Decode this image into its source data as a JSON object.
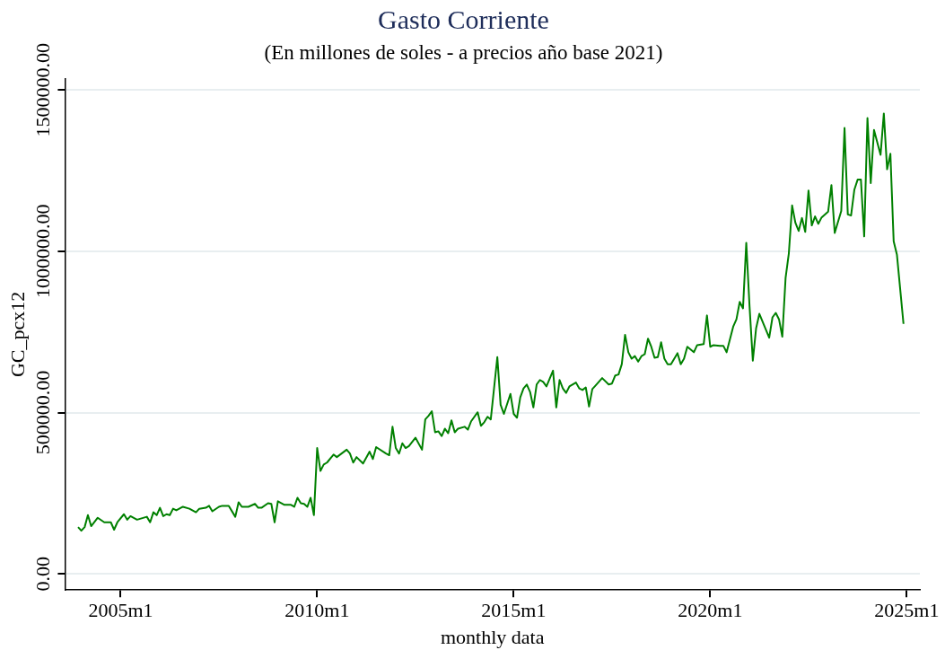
{
  "chart_data": {
    "type": "line",
    "title": "Gasto Corriente",
    "subtitle": "(En millones de soles - a precios año base 2021)",
    "xlabel": "monthly data",
    "ylabel": "GC_pcx12",
    "xlim": [
      "2003-08",
      "2025-05"
    ],
    "ylim": [
      -50000,
      1535000
    ],
    "xticks": [
      {
        "value": "2005-01",
        "label": "2005m1"
      },
      {
        "value": "2010-01",
        "label": "2010m1"
      },
      {
        "value": "2015-01",
        "label": "2015m1"
      },
      {
        "value": "2020-01",
        "label": "2020m1"
      },
      {
        "value": "2025-01",
        "label": "2025m1"
      }
    ],
    "yticks": [
      {
        "value": 0,
        "label": "0.00"
      },
      {
        "value": 500000,
        "label": "500000.00"
      },
      {
        "value": 1000000,
        "label": "1000000.00"
      },
      {
        "value": 1500000,
        "label": "1500000.00"
      }
    ],
    "grid": "y",
    "legend": false,
    "marker": "none",
    "line_style": "solid",
    "series": [
      {
        "color": "#008000",
        "x": [
          "2003-12",
          "2004-01",
          "2004-02",
          "2004-03",
          "2004-04",
          "2004-06",
          "2004-08",
          "2004-10",
          "2004-11",
          "2004-12",
          "2005-02",
          "2005-03",
          "2005-04",
          "2005-06",
          "2005-09",
          "2005-10",
          "2005-11",
          "2005-12",
          "2006-01",
          "2006-02",
          "2006-03",
          "2006-04",
          "2006-05",
          "2006-06",
          "2006-08",
          "2006-10",
          "2006-12",
          "2007-01",
          "2007-03",
          "2007-04",
          "2007-05",
          "2007-07",
          "2007-08",
          "2007-10",
          "2007-12",
          "2008-01",
          "2008-02",
          "2008-04",
          "2008-06",
          "2008-07",
          "2008-08",
          "2008-10",
          "2008-11",
          "2008-12",
          "2009-01",
          "2009-03",
          "2009-05",
          "2009-06",
          "2009-07",
          "2009-08",
          "2009-09",
          "2009-10",
          "2009-11",
          "2009-12",
          "2010-01",
          "2010-02",
          "2010-03",
          "2010-04",
          "2010-06",
          "2010-07",
          "2010-10",
          "2010-11",
          "2010-12",
          "2011-01",
          "2011-03",
          "2011-05",
          "2011-06",
          "2011-07",
          "2011-10",
          "2011-11",
          "2011-12",
          "2012-01",
          "2012-02",
          "2012-03",
          "2012-04",
          "2012-05",
          "2012-07",
          "2012-09",
          "2012-10",
          "2012-11",
          "2012-12",
          "2013-01",
          "2013-02",
          "2013-03",
          "2013-04",
          "2013-05",
          "2013-06",
          "2013-07",
          "2013-08",
          "2013-10",
          "2013-11",
          "2013-12",
          "2014-02",
          "2014-03",
          "2014-04",
          "2014-05",
          "2014-06",
          "2014-08",
          "2014-09",
          "2014-10",
          "2014-12",
          "2015-01",
          "2015-02",
          "2015-03",
          "2015-04",
          "2015-05",
          "2015-06",
          "2015-07",
          "2015-08",
          "2015-09",
          "2015-10",
          "2015-11",
          "2016-01",
          "2016-02",
          "2016-03",
          "2016-04",
          "2016-05",
          "2016-06",
          "2016-08",
          "2016-09",
          "2016-10",
          "2016-11",
          "2016-12",
          "2017-01",
          "2017-02",
          "2017-04",
          "2017-06",
          "2017-07",
          "2017-08",
          "2017-09",
          "2017-10",
          "2017-11",
          "2017-12",
          "2018-01",
          "2018-02",
          "2018-03",
          "2018-04",
          "2018-05",
          "2018-06",
          "2018-07",
          "2018-08",
          "2018-09",
          "2018-10",
          "2018-11",
          "2018-12",
          "2019-01",
          "2019-03",
          "2019-04",
          "2019-05",
          "2019-06",
          "2019-08",
          "2019-09",
          "2019-11",
          "2019-12",
          "2020-01",
          "2020-02",
          "2020-04",
          "2020-05",
          "2020-06",
          "2020-08",
          "2020-09",
          "2020-10",
          "2020-11",
          "2020-12",
          "2021-01",
          "2021-02",
          "2021-03",
          "2021-04",
          "2021-07",
          "2021-08",
          "2021-09",
          "2021-10",
          "2021-11",
          "2021-12",
          "2022-01",
          "2022-02",
          "2022-03",
          "2022-04",
          "2022-05",
          "2022-06",
          "2022-07",
          "2022-08",
          "2022-09",
          "2022-10",
          "2022-11",
          "2023-01",
          "2023-02",
          "2023-03",
          "2023-05",
          "2023-06",
          "2023-07",
          "2023-08",
          "2023-09",
          "2023-10",
          "2023-11",
          "2023-12",
          "2024-01",
          "2024-02",
          "2024-03",
          "2024-05",
          "2024-06",
          "2024-07",
          "2024-08",
          "2024-09",
          "2024-10",
          "2024-12"
        ],
        "values": [
          145000,
          134000,
          145000,
          182000,
          148000,
          174000,
          160000,
          160000,
          137000,
          160000,
          185000,
          168000,
          179000,
          168000,
          177000,
          160000,
          191000,
          182000,
          205000,
          179000,
          185000,
          182000,
          202000,
          197000,
          208000,
          202000,
          191000,
          202000,
          205000,
          211000,
          194000,
          208000,
          211000,
          211000,
          177000,
          222000,
          208000,
          208000,
          217000,
          205000,
          205000,
          219000,
          217000,
          160000,
          225000,
          214000,
          214000,
          208000,
          236000,
          219000,
          217000,
          208000,
          236000,
          182000,
          390000,
          319000,
          339000,
          345000,
          370000,
          362000,
          385000,
          373000,
          345000,
          362000,
          342000,
          379000,
          356000,
          393000,
          373000,
          368000,
          456000,
          390000,
          373000,
          405000,
          390000,
          396000,
          422000,
          385000,
          479000,
          490000,
          504000,
          439000,
          442000,
          427000,
          450000,
          436000,
          476000,
          439000,
          450000,
          456000,
          447000,
          473000,
          501000,
          459000,
          470000,
          487000,
          479000,
          672000,
          524000,
          496000,
          558000,
          496000,
          484000,
          547000,
          575000,
          587000,
          564000,
          516000,
          587000,
          601000,
          595000,
          581000,
          630000,
          516000,
          601000,
          575000,
          561000,
          581000,
          593000,
          575000,
          570000,
          578000,
          519000,
          573000,
          584000,
          607000,
          587000,
          590000,
          615000,
          618000,
          650000,
          741000,
          687000,
          667000,
          675000,
          658000,
          675000,
          681000,
          729000,
          704000,
          670000,
          672000,
          718000,
          667000,
          650000,
          650000,
          684000,
          650000,
          667000,
          704000,
          687000,
          709000,
          712000,
          801000,
          704000,
          709000,
          707000,
          707000,
          687000,
          766000,
          789000,
          843000,
          823000,
          1026000,
          829000,
          661000,
          761000,
          806000,
          732000,
          795000,
          809000,
          789000,
          735000,
          917000,
          994000,
          1142000,
          1088000,
          1063000,
          1103000,
          1060000,
          1188000,
          1080000,
          1108000,
          1085000,
          1105000,
          1123000,
          1205000,
          1057000,
          1125000,
          1382000,
          1114000,
          1111000,
          1191000,
          1222000,
          1222000,
          1046000,
          1413000,
          1211000,
          1376000,
          1299000,
          1427000,
          1254000,
          1302000,
          1031000,
          989000,
          775000
        ]
      }
    ]
  }
}
